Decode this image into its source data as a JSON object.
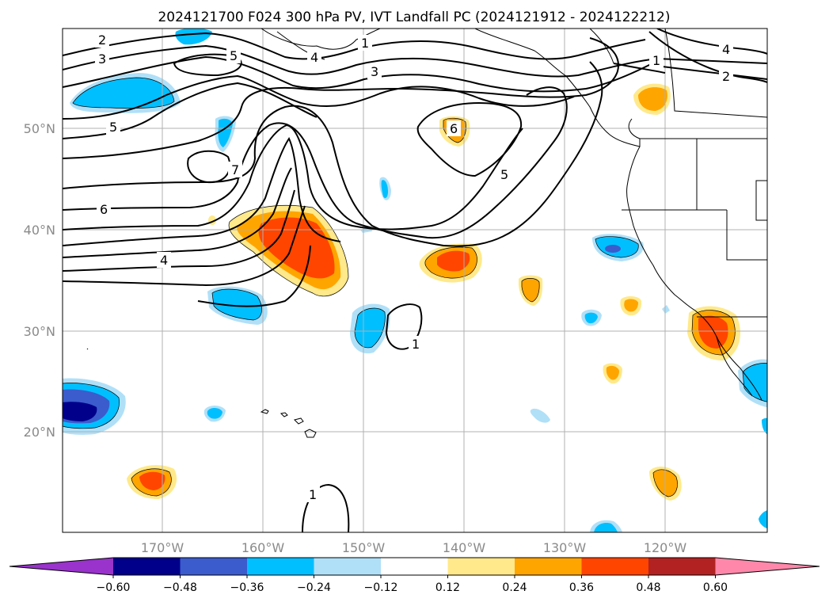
{
  "title": "2024121700 F024 300 hPa PV, IVT Landfall PC (2024121912 - 2024122212)",
  "lat_labels": [
    "50°N",
    "40°N",
    "30°N",
    "20°N"
  ],
  "lon_labels": [
    "170°W",
    "160°W",
    "150°W",
    "140°W",
    "130°W",
    "120°W"
  ],
  "colorbar": {
    "ticks": [
      "−0.60",
      "−0.48",
      "−0.36",
      "−0.24",
      "−0.12",
      "0.12",
      "0.24",
      "0.36",
      "0.48",
      "0.60"
    ],
    "colors": [
      "#9933cc",
      "#00008b",
      "#3b5ccc",
      "#00bfff",
      "#b0e0f8",
      "#ffffff",
      "#ffe98a",
      "#ffa500",
      "#ff4500",
      "#b22222",
      "#ff88aa"
    ]
  },
  "contour_labels": [
    "2",
    "3",
    "5",
    "1",
    "4",
    "3",
    "1",
    "4",
    "2",
    "5",
    "6",
    "7",
    "6",
    "4",
    "5",
    "1",
    "1"
  ]
}
